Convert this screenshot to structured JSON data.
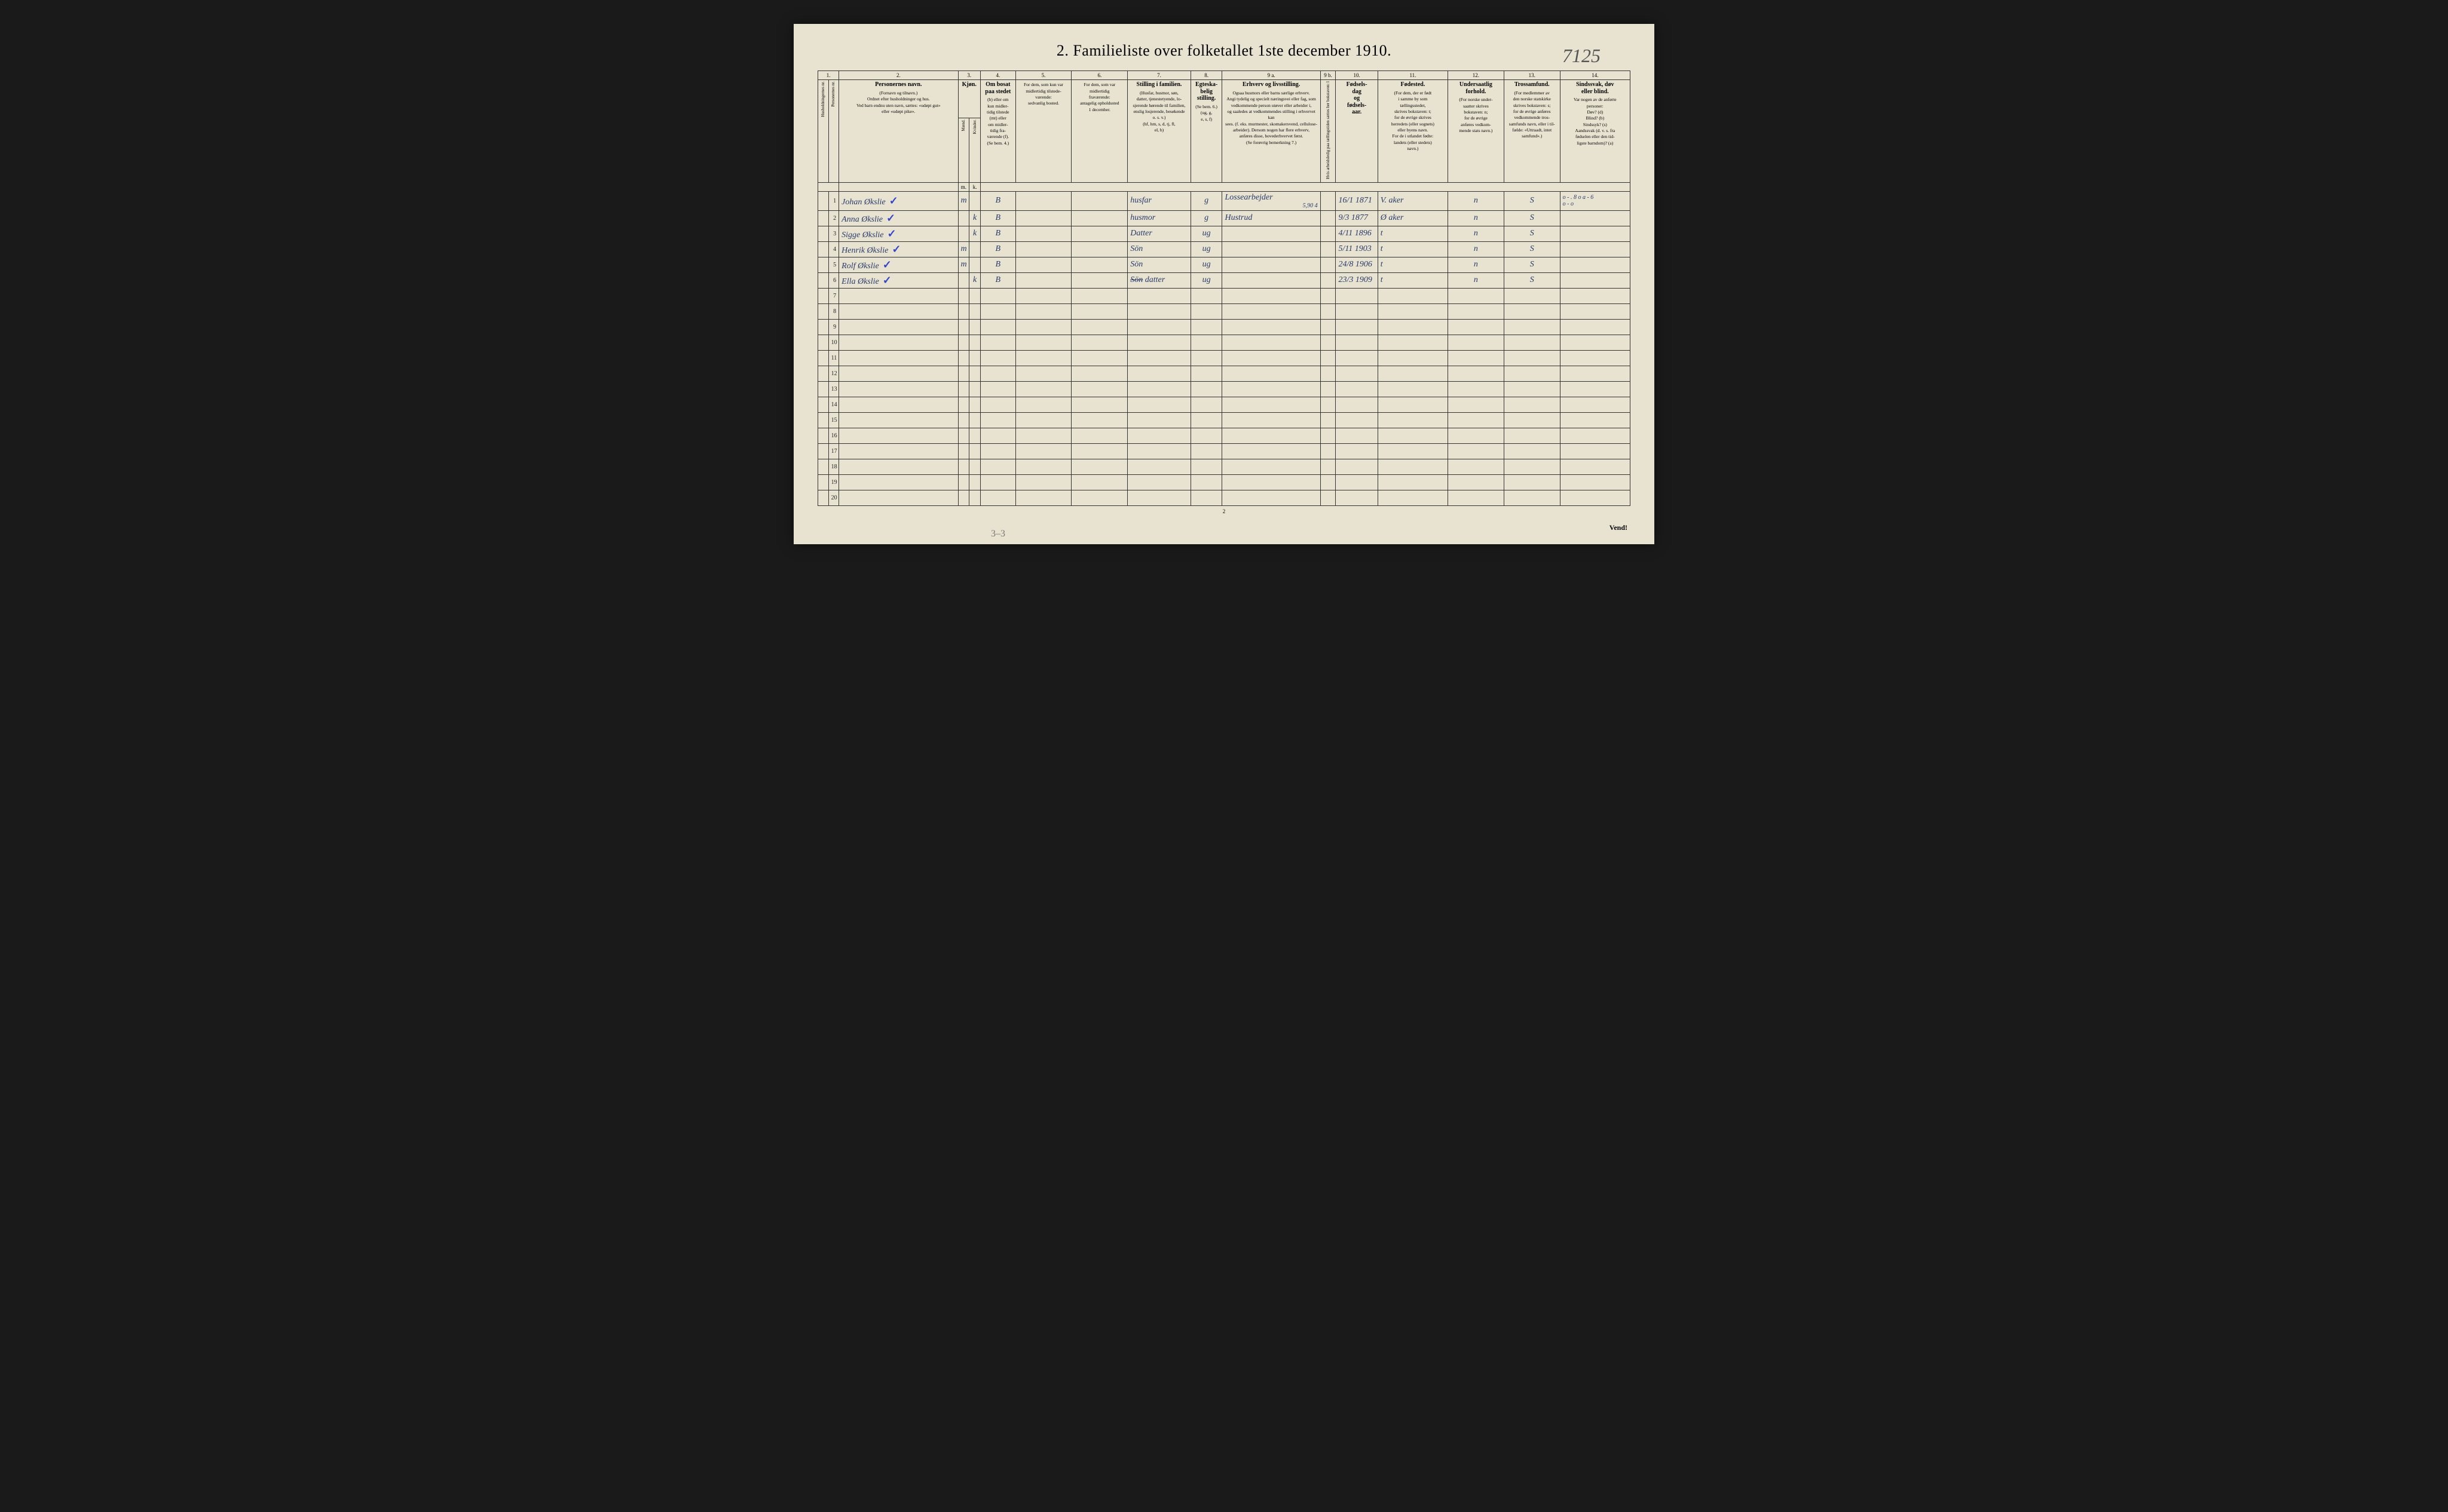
{
  "title": "2.  Familieliste over folketallet 1ste december 1910.",
  "handwritten_ref": "7125",
  "footer_pagenum": "2",
  "footer_vend": "Vend!",
  "footer_pencil": "3–3",
  "col_nums": [
    "1.",
    "2.",
    "3.",
    "4.",
    "5.",
    "6.",
    "7.",
    "8.",
    "9 a.",
    "9 b.",
    "10.",
    "11.",
    "12.",
    "13.",
    "14."
  ],
  "headers": {
    "c1a": "Husholdningernes nr.",
    "c1b": "Personernes nr.",
    "c2_title": "Personernes navn.",
    "c2_sub": "(Fornavn og tilnavn.)\nOrdnet efter husholdninger og hus.\nVed barn endnu uten navn, sættes: «udøpt gut»\neller «udøpt pike».",
    "c3_title": "Kjøn.",
    "c3_m": "Mænd.",
    "c3_k": "Kvinder.",
    "c4_title": "Om bosat\npaa stedet",
    "c4_sub": "(b) eller om\nkun midler-\ntidig tilstede\n(mt) eller\nom midler-\ntidig fra-\nværende (f).\n(Se bem. 4.)",
    "c5": "For dem, som kun var\nmidlertidig tilstede-\nværende:\nsedvanlig bosted.",
    "c6": "For dem, som var\nmidlertidig\nfraværende:\nantagelig opholdssted\n1 december.",
    "c7_title": "Stilling i familien.",
    "c7_sub": "(Husfar, husmor, søn,\ndatter, tjenestetyende, lo-\nsjerende hørende til familien,\nenslig losjerende, besøkende\no. s. v.)\n(hf, hm, s, d, tj, fl,\nel, b)",
    "c8_title": "Egteska-\nbelig\nstilling.",
    "c8_sub": "(Se bem. 6.)\n(ug, g,\ne, s, f)",
    "c9a_title": "Erhverv og livsstilling.",
    "c9a_sub": "Ogsaa husmors eller barns særlige erhverv.\nAngi tydelig og specielt næringsvei eller fag, som\nvedkommende person utøver eller arbeider i,\nog saaledes at vedkommendes stilling i erhvervet kan\nsees. (f. eks. murmester, skomakersvend, cellulose-\narbeider). Dersom nogen har flere erhverv,\nanføres disse, hovederhvervet først.\n(Se forøvrig bemerkning 7.)",
    "c9b": "Hvis arbeidsledig\npaa tællingstiden sættes\nher bokstaven: l",
    "c10_title": "Fødsels-\ndag\nog\nfødsels-\naar.",
    "c11_title": "Fødested.",
    "c11_sub": "(For dem, der er født\ni samme by som\ntællingsstedet,\nskrives bokstaven: t;\nfor de øvrige skrives\nherredets (eller sognets)\neller byens navn.\nFor de i utlandet fødte:\nlandets (eller stedets)\nnavn.)",
    "c12_title": "Undersaatlig\nforhold.",
    "c12_sub": "(For norske under-\nsaatter skrives\nbokstaven: n;\nfor de øvrige\nanføres vedkom-\nmende stats navn.)",
    "c13_title": "Trossamfund.",
    "c13_sub": "(For medlemmer av\nden norske statskirke\nskrives bokstaven: s;\nfor de øvrige anføres\nvedkommende tros-\nsamfunds navn, eller i til-\nfælde: «Uttraadt, intet\nsamfund».)",
    "c14_title": "Sindssvak, døv\neller blind.",
    "c14_sub": "Var nogen av de anførte\npersoner:\nDøv?        (d)\nBlind?       (b)\nSindssyk?  (s)\nAandssvak (d. v. s. fra\nfødselen eller den tid-\nligste barndom)? (a)"
  },
  "rows": [
    {
      "n": "1",
      "name": "Johan Økslie",
      "chk": true,
      "m": "m",
      "k": "",
      "bosat": "B",
      "c5": "",
      "c6": "",
      "stilling": "husfar",
      "egt": "g",
      "erhv": "Lossearbejder",
      "erhv2": "5,90 4",
      "c9b": "",
      "fdato": "16/1 1871",
      "fsted": "V. aker",
      "und": "n",
      "tros": "S",
      "sind": "o - . 8 o a - 6\no - o"
    },
    {
      "n": "2",
      "name": "Anna Økslie",
      "chk": true,
      "m": "",
      "k": "k",
      "bosat": "B",
      "c5": "",
      "c6": "",
      "stilling": "husmor",
      "egt": "g",
      "erhv": "Hustrud",
      "erhv2": "",
      "c9b": "",
      "fdato": "9/3 1877",
      "fsted": "Ø aker",
      "und": "n",
      "tros": "S",
      "sind": ""
    },
    {
      "n": "3",
      "name": "Sigge Økslie",
      "chk": true,
      "m": "",
      "k": "k",
      "bosat": "B",
      "c5": "",
      "c6": "",
      "stilling": "Datter",
      "egt": "ug",
      "erhv": "",
      "erhv2": "",
      "c9b": "",
      "fdato": "4/11 1896",
      "fsted": "t",
      "und": "n",
      "tros": "S",
      "sind": ""
    },
    {
      "n": "4",
      "name": "Henrik Økslie",
      "chk": true,
      "m": "m",
      "k": "",
      "bosat": "B",
      "c5": "",
      "c6": "",
      "stilling": "Sön",
      "egt": "ug",
      "erhv": "",
      "erhv2": "",
      "c9b": "",
      "fdato": "5/11 1903",
      "fsted": "t",
      "und": "n",
      "tros": "S",
      "sind": ""
    },
    {
      "n": "5",
      "name": "Rolf Økslie",
      "chk": true,
      "m": "m",
      "k": "",
      "bosat": "B",
      "c5": "",
      "c6": "",
      "stilling": "Sön",
      "egt": "ug",
      "erhv": "",
      "erhv2": "",
      "c9b": "",
      "fdato": "24/8 1906",
      "fsted": "t",
      "und": "n",
      "tros": "S",
      "sind": ""
    },
    {
      "n": "6",
      "name": "Ella Økslie",
      "chk": true,
      "m": "",
      "k": "k",
      "bosat": "B",
      "c5": "",
      "c6": "",
      "stilling": "datter",
      "stilling_struck": "Sön",
      "egt": "ug",
      "erhv": "",
      "erhv2": "",
      "c9b": "",
      "fdato": "23/3 1909",
      "fsted": "t",
      "und": "n",
      "tros": "S",
      "sind": ""
    },
    {
      "n": "7"
    },
    {
      "n": "8"
    },
    {
      "n": "9"
    },
    {
      "n": "10"
    },
    {
      "n": "11"
    },
    {
      "n": "12"
    },
    {
      "n": "13"
    },
    {
      "n": "14"
    },
    {
      "n": "15"
    },
    {
      "n": "16"
    },
    {
      "n": "17"
    },
    {
      "n": "18"
    },
    {
      "n": "19"
    },
    {
      "n": "20"
    }
  ],
  "colors": {
    "page_bg": "#e8e3d0",
    "border": "#333333",
    "ink_print": "#222222",
    "ink_hand": "#2a3a6a",
    "checkmark": "#3344cc",
    "pencil": "#777777"
  },
  "col_widths_pct": [
    1.5,
    1.5,
    17,
    1.6,
    1.6,
    5,
    8,
    8,
    9,
    4.5,
    14,
    2.2,
    6,
    10,
    8,
    8,
    10
  ],
  "fontsizes": {
    "title": 26,
    "header_title": 10,
    "header_sub": 7.5,
    "col_num": 9,
    "row_num": 10,
    "handwriting": 14,
    "ref": 32
  }
}
